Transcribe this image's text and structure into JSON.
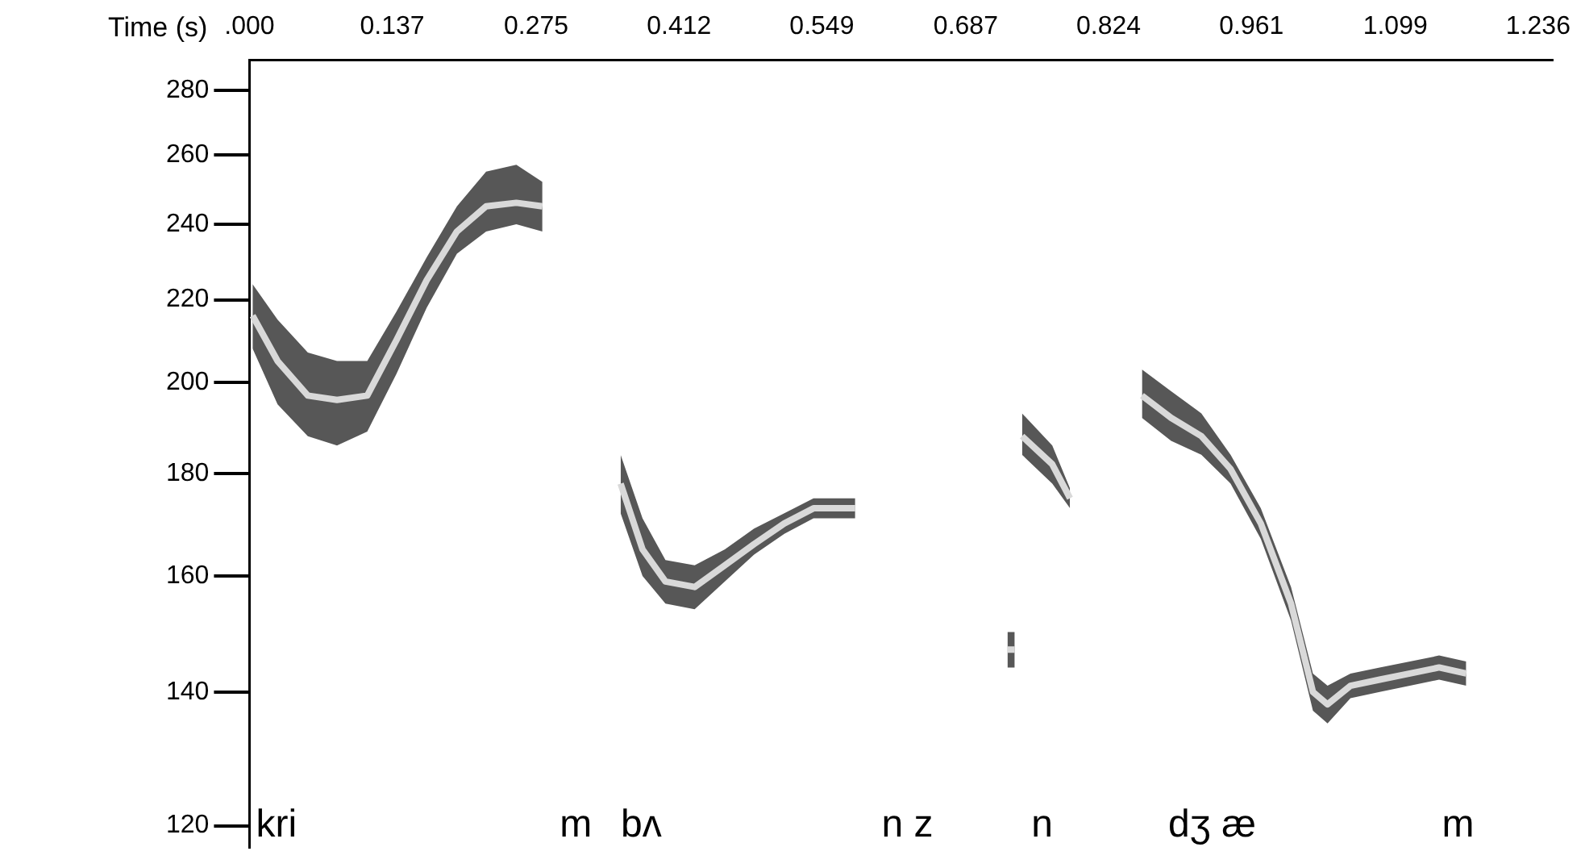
{
  "chart_data": {
    "type": "line",
    "xlabel": "Time (s)",
    "xlim": [
      0,
      1.25
    ],
    "xticks": [
      {
        "value": 0,
        "label": ".000"
      },
      0.137,
      0.275,
      0.412,
      0.549,
      0.687,
      0.824,
      0.961,
      1.099,
      1.236
    ],
    "ylim": [
      117,
      290
    ],
    "yticks": [
      120,
      140,
      160,
      180,
      200,
      220,
      240,
      260,
      280
    ],
    "log": true,
    "grid": false,
    "legend": false,
    "marker": "none",
    "series": [
      {
        "color": "#d9d9d9",
        "x": [
          0.003,
          0.027,
          0.056,
          0.084,
          0.113,
          0.141,
          0.17,
          0.199,
          0.227,
          0.256,
          0.281,
          0.32,
          0.356,
          0.377,
          0.399,
          0.427,
          0.456,
          0.484,
          0.513,
          0.541,
          0.581,
          0.65,
          0.727,
          0.734,
          0.738,
          0.741,
          0.77,
          0.787,
          0.82,
          0.856,
          0.884,
          0.913,
          0.941,
          0.97,
          0.999,
          1.02,
          1.034,
          1.056,
          1.084,
          1.113,
          1.141,
          1.167
        ],
        "values": [
          216,
          205,
          197,
          196,
          197,
          210,
          225,
          238,
          245,
          246,
          245,
          null,
          178,
          165,
          159,
          158,
          162,
          166,
          170,
          173,
          173,
          null,
          147,
          147,
          null,
          188,
          182,
          175,
          null,
          197,
          192,
          188,
          181,
          170,
          155,
          140,
          138,
          141,
          142,
          143,
          144,
          143
        ],
        "lower": [
          208,
          195,
          188,
          186,
          189,
          202,
          218,
          232,
          238,
          240,
          238,
          null,
          172,
          160,
          155,
          154,
          159,
          164,
          168,
          171,
          171,
          null,
          144,
          144,
          null,
          184,
          178,
          173,
          null,
          192,
          187,
          184,
          178,
          167,
          152,
          137,
          135,
          139,
          140,
          141,
          142,
          141
        ],
        "upper": [
          224,
          215,
          207,
          205,
          205,
          217,
          231,
          245,
          255,
          257,
          252,
          null,
          184,
          171,
          163,
          162,
          165,
          169,
          172,
          175,
          175,
          null,
          150,
          150,
          null,
          193,
          186,
          177,
          null,
          203,
          198,
          193,
          184,
          173,
          158,
          143,
          141,
          143,
          144,
          145,
          146,
          145
        ]
      }
    ],
    "annotations": [
      "kri",
      "m",
      "bʌ",
      "n z",
      "n",
      "dʒ æ",
      "m"
    ]
  }
}
